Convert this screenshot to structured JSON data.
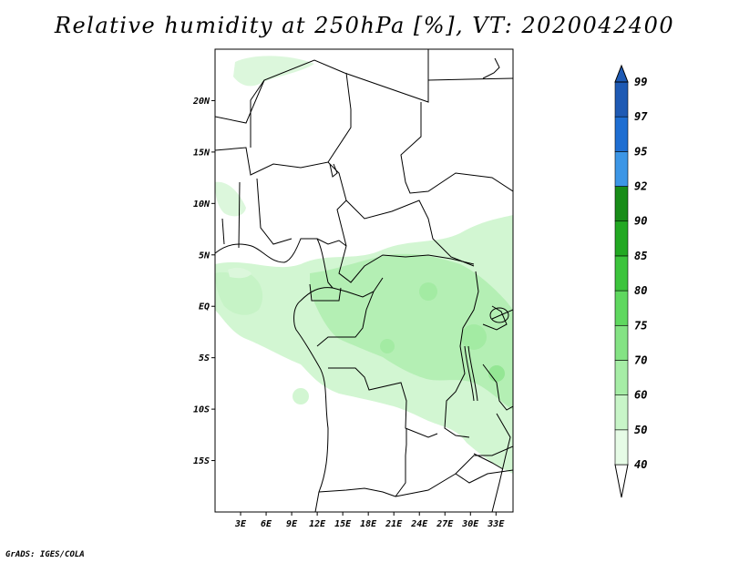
{
  "title": "Relative humidity at 250hPa [%], VT: 2020042400",
  "credit": "GrADS: IGES/COLA",
  "map": {
    "lon_range": [
      0,
      35
    ],
    "lat_range": [
      -20,
      25
    ],
    "lat_ticks": [
      {
        "value": 20,
        "label": "20N"
      },
      {
        "value": 15,
        "label": "15N"
      },
      {
        "value": 10,
        "label": "10N"
      },
      {
        "value": 5,
        "label": "5N"
      },
      {
        "value": 0,
        "label": "EQ"
      },
      {
        "value": -5,
        "label": "5S"
      },
      {
        "value": -10,
        "label": "10S"
      },
      {
        "value": -15,
        "label": "15S"
      }
    ],
    "lon_ticks": [
      {
        "value": 3,
        "label": "3E"
      },
      {
        "value": 6,
        "label": "6E"
      },
      {
        "value": 9,
        "label": "9E"
      },
      {
        "value": 12,
        "label": "12E"
      },
      {
        "value": 15,
        "label": "15E"
      },
      {
        "value": 18,
        "label": "18E"
      },
      {
        "value": 21,
        "label": "21E"
      },
      {
        "value": 24,
        "label": "24E"
      },
      {
        "value": 27,
        "label": "27E"
      },
      {
        "value": 30,
        "label": "30E"
      },
      {
        "value": 33,
        "label": "33E"
      }
    ]
  },
  "colorbar": {
    "levels": [
      {
        "label": "40",
        "color": "#ffffff"
      },
      {
        "label": "50",
        "color": "#e6fbe6"
      },
      {
        "label": "60",
        "color": "#c8f5c8"
      },
      {
        "label": "70",
        "color": "#a6eda6"
      },
      {
        "label": "75",
        "color": "#84e384"
      },
      {
        "label": "80",
        "color": "#5fd85f"
      },
      {
        "label": "85",
        "color": "#3cc43c"
      },
      {
        "label": "90",
        "color": "#22a822"
      },
      {
        "label": "92",
        "color": "#188c18"
      },
      {
        "label": "95",
        "color": "#3c96e6"
      },
      {
        "label": "97",
        "color": "#1e6ed2"
      },
      {
        "label": "99",
        "color": "#1e5ab4"
      }
    ]
  }
}
